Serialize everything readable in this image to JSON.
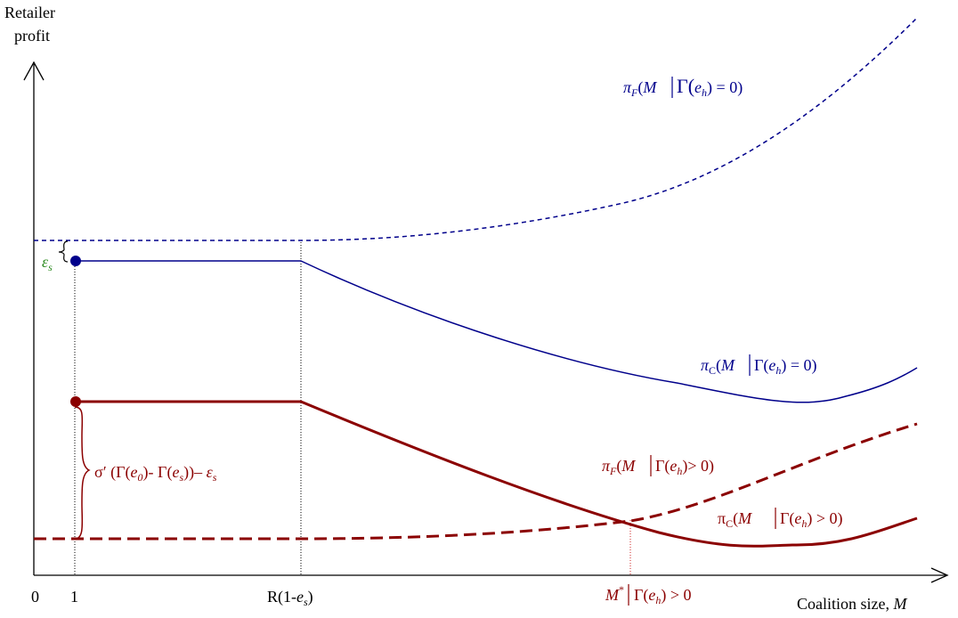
{
  "axes": {
    "y_label_line1": "Retailer",
    "y_label_line2": "profit",
    "x_label": "Coalition size, ",
    "x_label_var": "M",
    "origin": "0",
    "tick_1": "1",
    "tick_r_pre": "R(1-",
    "tick_r_var": "e",
    "tick_r_sub": "s",
    "tick_r_post": ")",
    "tick_mstar_var": "M",
    "tick_mstar_sup": "*",
    "tick_mstar_post": "Γ(",
    "tick_mstar_e": "e",
    "tick_mstar_h": "h",
    "tick_mstar_end": ") > 0"
  },
  "annotations": {
    "epsilon_var": "ε",
    "epsilon_sub": "s",
    "sigma_pre": "σ′ (Γ(",
    "sigma_e0": "e",
    "sigma_0": "0",
    "sigma_mid": ")- Γ(",
    "sigma_es": "e",
    "sigma_s": "s",
    "sigma_post": "))– ",
    "sigma_eps": "ε",
    "sigma_eps_sub": "s"
  },
  "curve_labels": {
    "piF_h0": {
      "pi": "π",
      "sub": "F",
      "open": "(",
      "m": "M",
      "gamma": "Γ(",
      "e": "e",
      "h": "h",
      "close": ")  = 0)"
    },
    "piC_h0": {
      "pi": "π",
      "sub": "C",
      "open": "(",
      "m": "M",
      "gamma": "Γ(",
      "e": "e",
      "h": "h",
      "close": ") = 0)"
    },
    "piF_hpos": {
      "pi": "π",
      "sub": "F",
      "open": "(",
      "m": "M",
      "gamma": "Γ(",
      "e": "e",
      "h": "h",
      "close": ")> 0)"
    },
    "piC_hpos": {
      "pi": "π",
      "sub": "C",
      "open": "(",
      "m": "M ",
      "gamma": "Γ(",
      "e": "e",
      "h": "h",
      "close": ") > 0)"
    }
  },
  "colors": {
    "blue": "#00008B",
    "darkred": "#8B0000",
    "green": "#2E8B22",
    "axis": "#000000",
    "mstar": "#8B0000"
  }
}
